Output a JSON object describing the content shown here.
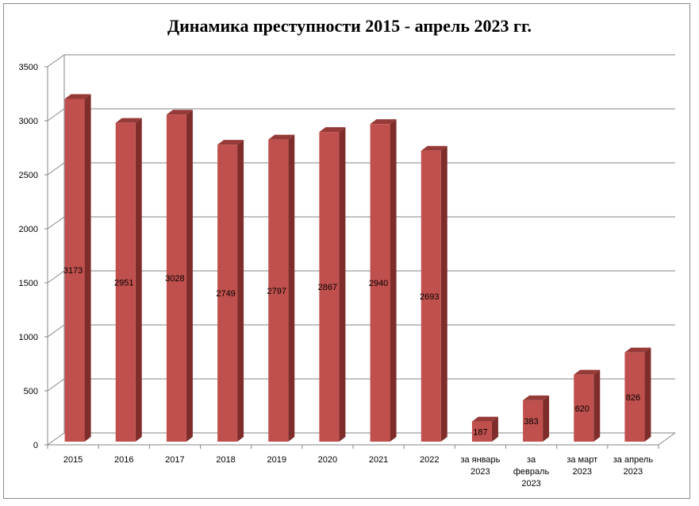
{
  "chart_data": {
    "type": "bar",
    "title": "Динамика преступности 2015 - апрель 2023 гг.",
    "categories": [
      "2015",
      "2016",
      "2017",
      "2018",
      "2019",
      "2020",
      "2021",
      "2022",
      "за январь 2023",
      "за февраль 2023",
      "за март 2023",
      "за апрель 2023"
    ],
    "category_lines": [
      [
        "2015"
      ],
      [
        "2016"
      ],
      [
        "2017"
      ],
      [
        "2018"
      ],
      [
        "2019"
      ],
      [
        "2020"
      ],
      [
        "2021"
      ],
      [
        "2022"
      ],
      [
        "за январь",
        "2023"
      ],
      [
        "за",
        "февраль",
        "2023"
      ],
      [
        "за март",
        "2023"
      ],
      [
        "за апрель",
        "2023"
      ]
    ],
    "values": [
      3173,
      2951,
      3028,
      2749,
      2797,
      2867,
      2940,
      2693,
      187,
      383,
      620,
      826
    ],
    "ylim": [
      0,
      3500
    ],
    "yticks": [
      0,
      500,
      1000,
      1500,
      2000,
      2500,
      3000,
      3500
    ],
    "xlabel": "",
    "ylabel": "",
    "grid": true,
    "legend": "none",
    "style": "3d-column",
    "colors": {
      "front": "#c0504d",
      "side": "#7f2d2b",
      "top": "#963a38",
      "grid": "#868686"
    }
  }
}
